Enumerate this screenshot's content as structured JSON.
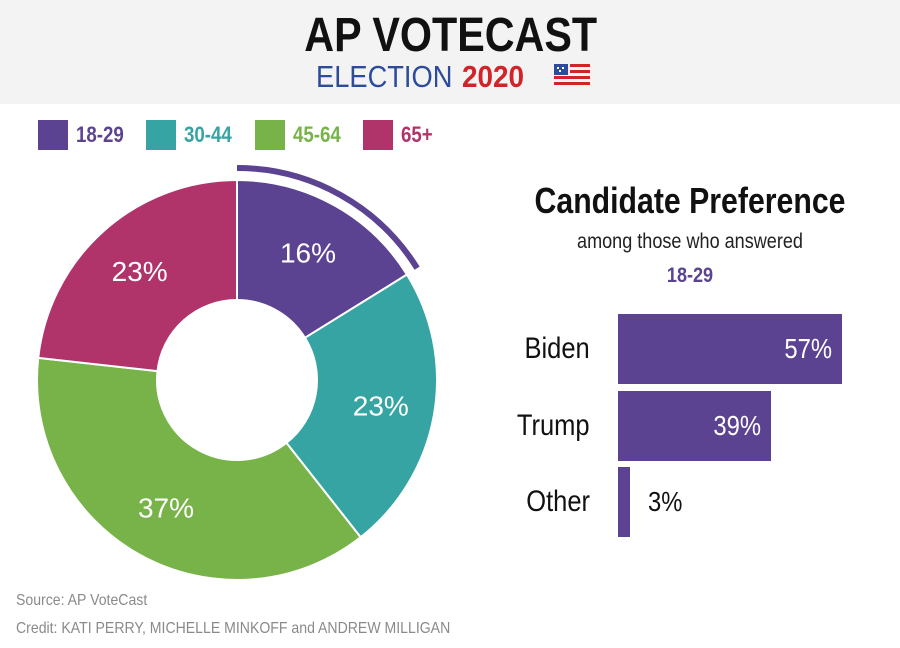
{
  "header": {
    "title": "AP VOTECAST",
    "election_label": "ELECTION",
    "year": "2020",
    "flag_icon": "us-flag-icon"
  },
  "colors": {
    "age_18_29": "#5b4391",
    "age_30_44": "#35a4a3",
    "age_45_64": "#77b348",
    "age_65_plus": "#b0336a",
    "highlight_outline": "#5b4391",
    "election_blue": "#2c4b9a",
    "election_red": "#d2232a"
  },
  "chart_data": [
    {
      "type": "pie",
      "variant": "donut",
      "categories": [
        "18-29",
        "30-44",
        "45-64",
        "65+"
      ],
      "values": [
        16,
        23,
        37,
        23
      ],
      "value_labels": [
        "16%",
        "23%",
        "37%",
        "23%"
      ],
      "unit": "%",
      "highlighted": "18-29",
      "legend": "top"
    },
    {
      "type": "bar",
      "orientation": "horizontal",
      "title": "Candidate Preference",
      "subtitle": "among those who answered",
      "group": "18-29",
      "categories": [
        "Biden",
        "Trump",
        "Other"
      ],
      "values": [
        57,
        39,
        3
      ],
      "value_labels": [
        "57%",
        "39%",
        "3%"
      ],
      "xlim": [
        0,
        57
      ]
    }
  ],
  "footer": {
    "source": "Source: AP VoteCast",
    "credit": "Credit: KATI PERRY, MICHELLE MINKOFF and ANDREW MILLIGAN"
  }
}
